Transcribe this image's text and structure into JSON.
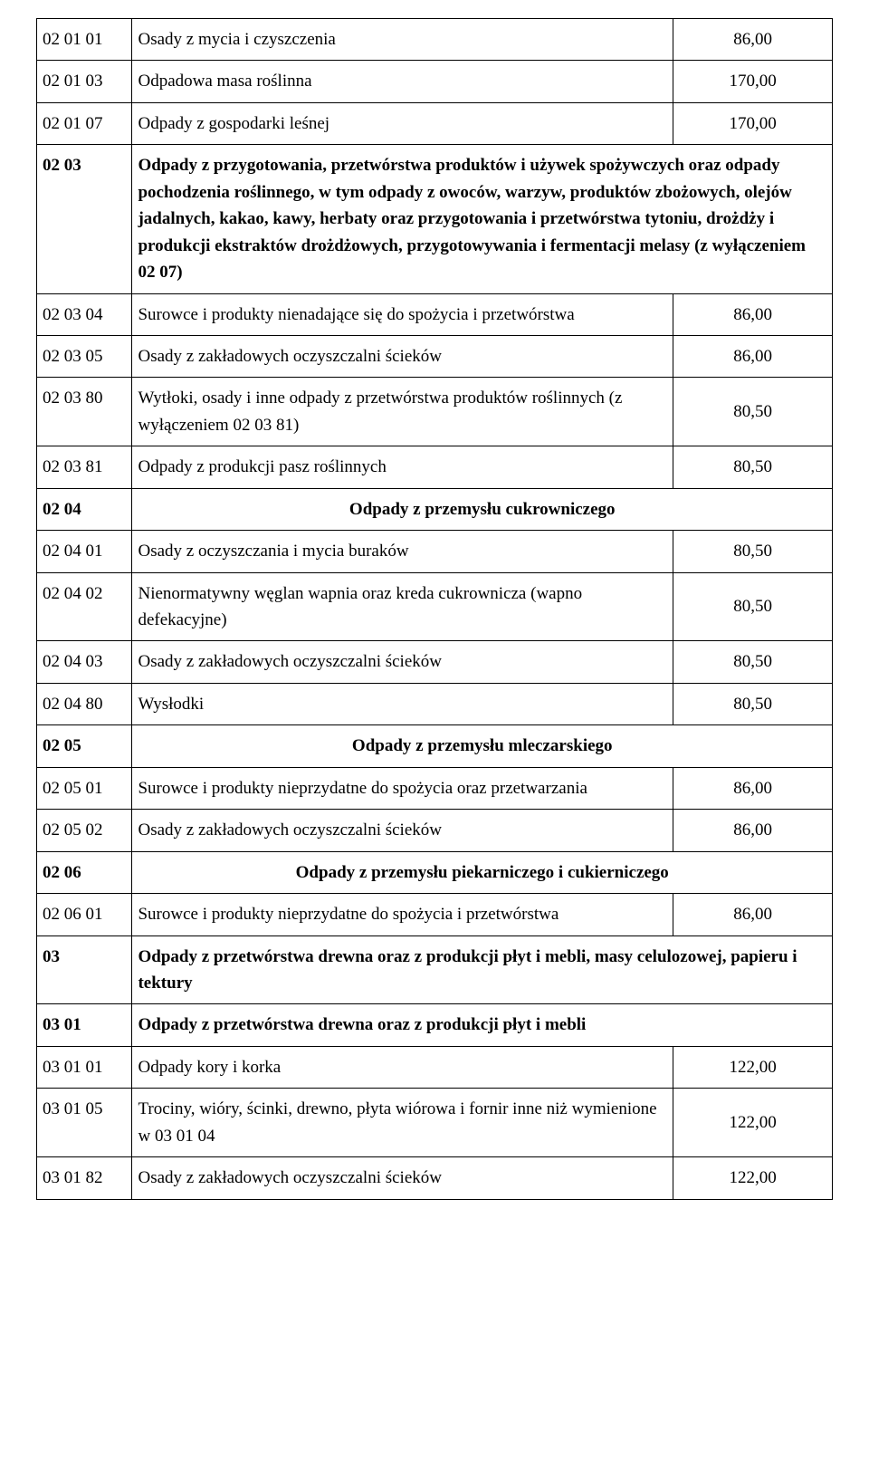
{
  "table": {
    "border_color": "#000000",
    "background_color": "#ffffff",
    "font_family": "Times New Roman",
    "base_font_size_pt": 14,
    "columns": {
      "code_width_pct": 12,
      "desc_width_pct": 68,
      "amount_width_pct": 20
    },
    "rows": [
      {
        "code": "02 01 01",
        "desc": "Osady z mycia i czyszczenia",
        "amount": "86,00"
      },
      {
        "code": "02 01 03",
        "desc": "Odpadowa masa roślinna",
        "amount": "170,00"
      },
      {
        "code": "02 01 07",
        "desc": "Odpady z gospodarki leśnej",
        "amount": "170,00"
      },
      {
        "code": "02 03",
        "desc": "Odpady z przygotowania, przetwórstwa produktów i używek spożywczych oraz odpady pochodzenia roślinnego, w tym odpady z owoców, warzyw, produktów zbożowych, olejów jadalnych, kakao, kawy, herbaty oraz przygotowania i przetwórstwa tytoniu, drożdży i produkcji ekstraktów drożdżowych, przygotowywania i fermentacji melasy (z wyłączeniem 02 07)",
        "section": "left"
      },
      {
        "code": "02 03 04",
        "desc": "Surowce i produkty nienadające się do spożycia i przetwórstwa",
        "amount": "86,00"
      },
      {
        "code": "02 03 05",
        "desc": "Osady z zakładowych oczyszczalni ścieków",
        "amount": "86,00"
      },
      {
        "code": "02 03 80",
        "desc": "Wytłoki, osady i inne odpady z przetwórstwa produktów roślinnych (z wyłączeniem 02 03 81)",
        "amount": "80,50"
      },
      {
        "code": "02 03 81",
        "desc": "Odpady z produkcji pasz roślinnych",
        "amount": "80,50"
      },
      {
        "code": "02 04",
        "desc": "Odpady z przemysłu cukrowniczego",
        "section": "center"
      },
      {
        "code": "02 04 01",
        "desc": "Osady z oczyszczania i mycia buraków",
        "amount": "80,50"
      },
      {
        "code": "02 04 02",
        "desc": "Nienormatywny węglan wapnia oraz kreda cukrownicza (wapno defekacyjne)",
        "amount": "80,50"
      },
      {
        "code": "02 04 03",
        "desc": "Osady z zakładowych oczyszczalni ścieków",
        "amount": "80,50"
      },
      {
        "code": "02 04 80",
        "desc": "Wysłodki",
        "amount": "80,50"
      },
      {
        "code": "02 05",
        "desc": "Odpady z przemysłu mleczarskiego",
        "section": "center"
      },
      {
        "code": "02 05 01",
        "desc": "Surowce i produkty nieprzydatne do spożycia oraz przetwarzania",
        "amount": "86,00"
      },
      {
        "code": "02 05 02",
        "desc": "Osady z zakładowych oczyszczalni ścieków",
        "amount": "86,00"
      },
      {
        "code": "02 06",
        "desc": "Odpady z przemysłu piekarniczego i cukierniczego",
        "section": "center"
      },
      {
        "code": "02 06 01",
        "desc": "Surowce i produkty nieprzydatne do spożycia i przetwórstwa",
        "amount": "86,00"
      },
      {
        "code": "03",
        "desc": "Odpady z przetwórstwa drewna oraz z produkcji płyt i mebli, masy celulozowej, papieru i tektury",
        "section": "left"
      },
      {
        "code": "03 01",
        "desc": "Odpady z przetwórstwa drewna oraz z produkcji płyt i mebli",
        "section": "left"
      },
      {
        "code": "03 01 01",
        "desc": "Odpady kory i korka",
        "amount": "122,00"
      },
      {
        "code": "03 01 05",
        "desc": "Trociny, wióry, ścinki, drewno, płyta wiórowa i fornir inne niż wymienione w 03 01 04",
        "amount": "122,00"
      },
      {
        "code": "03 01 82",
        "desc": "Osady z zakładowych oczyszczalni ścieków",
        "amount": "122,00"
      }
    ]
  }
}
